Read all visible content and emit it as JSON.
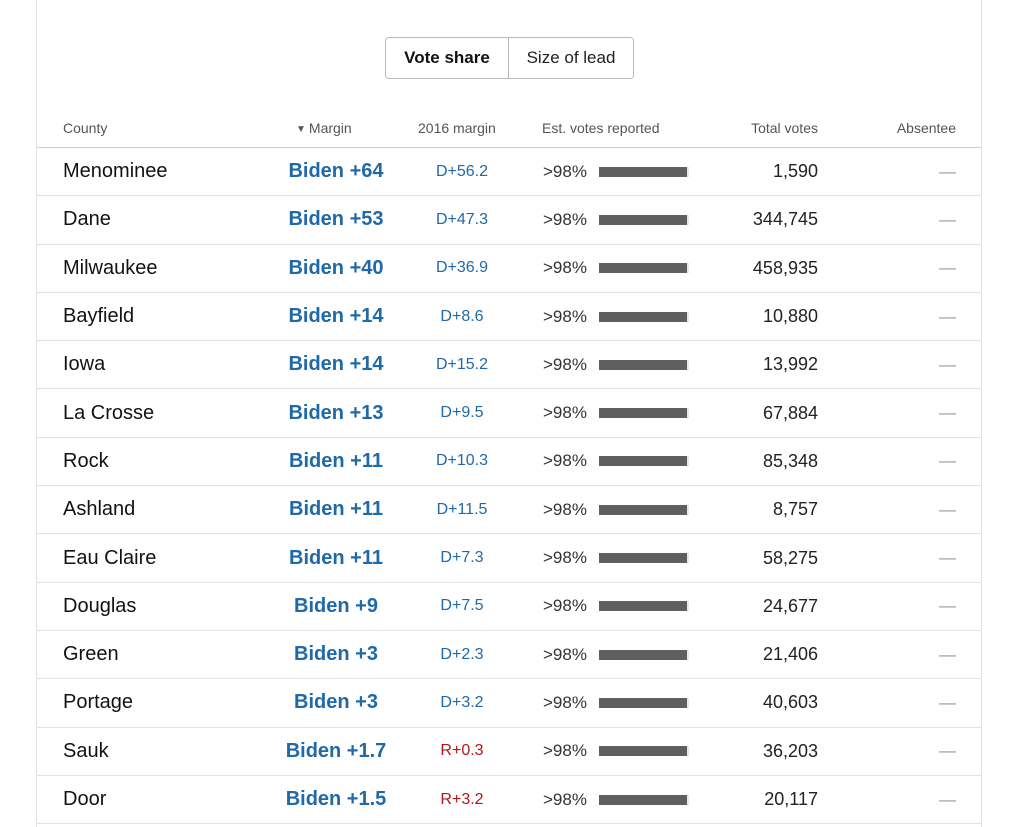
{
  "toggle": {
    "vote_share_label": "Vote share",
    "size_of_lead_label": "Size of lead",
    "selected": "Vote share"
  },
  "headers": {
    "county": "County",
    "sort_icon": "▼",
    "margin": "Margin",
    "margin_2016": "2016 margin",
    "est_votes": "Est. votes reported",
    "total_votes": "Total votes",
    "absentee": "Absentee"
  },
  "colors": {
    "dem_blue": "#2069a8",
    "rep_red": "#b5141b",
    "reported_bar": "#5f5f5f"
  },
  "rows": [
    {
      "county": "Menominee",
      "margin": "Biden +64",
      "margin_2016": "D+56.2",
      "party_2016": "dem",
      "est_reported": ">98%",
      "reported_fraction": 0.98,
      "total_votes": "1,590",
      "absentee": "—"
    },
    {
      "county": "Dane",
      "margin": "Biden +53",
      "margin_2016": "D+47.3",
      "party_2016": "dem",
      "est_reported": ">98%",
      "reported_fraction": 0.98,
      "total_votes": "344,745",
      "absentee": "—"
    },
    {
      "county": "Milwaukee",
      "margin": "Biden +40",
      "margin_2016": "D+36.9",
      "party_2016": "dem",
      "est_reported": ">98%",
      "reported_fraction": 0.98,
      "total_votes": "458,935",
      "absentee": "—"
    },
    {
      "county": "Bayfield",
      "margin": "Biden +14",
      "margin_2016": "D+8.6",
      "party_2016": "dem",
      "est_reported": ">98%",
      "reported_fraction": 0.98,
      "total_votes": "10,880",
      "absentee": "—"
    },
    {
      "county": "Iowa",
      "margin": "Biden +14",
      "margin_2016": "D+15.2",
      "party_2016": "dem",
      "est_reported": ">98%",
      "reported_fraction": 0.98,
      "total_votes": "13,992",
      "absentee": "—"
    },
    {
      "county": "La Crosse",
      "margin": "Biden +13",
      "margin_2016": "D+9.5",
      "party_2016": "dem",
      "est_reported": ">98%",
      "reported_fraction": 0.98,
      "total_votes": "67,884",
      "absentee": "—"
    },
    {
      "county": "Rock",
      "margin": "Biden +11",
      "margin_2016": "D+10.3",
      "party_2016": "dem",
      "est_reported": ">98%",
      "reported_fraction": 0.98,
      "total_votes": "85,348",
      "absentee": "—"
    },
    {
      "county": "Ashland",
      "margin": "Biden +11",
      "margin_2016": "D+11.5",
      "party_2016": "dem",
      "est_reported": ">98%",
      "reported_fraction": 0.98,
      "total_votes": "8,757",
      "absentee": "—"
    },
    {
      "county": "Eau Claire",
      "margin": "Biden +11",
      "margin_2016": "D+7.3",
      "party_2016": "dem",
      "est_reported": ">98%",
      "reported_fraction": 0.98,
      "total_votes": "58,275",
      "absentee": "—"
    },
    {
      "county": "Douglas",
      "margin": "Biden +9",
      "margin_2016": "D+7.5",
      "party_2016": "dem",
      "est_reported": ">98%",
      "reported_fraction": 0.98,
      "total_votes": "24,677",
      "absentee": "—"
    },
    {
      "county": "Green",
      "margin": "Biden +3",
      "margin_2016": "D+2.3",
      "party_2016": "dem",
      "est_reported": ">98%",
      "reported_fraction": 0.98,
      "total_votes": "21,406",
      "absentee": "—"
    },
    {
      "county": "Portage",
      "margin": "Biden +3",
      "margin_2016": "D+3.2",
      "party_2016": "dem",
      "est_reported": ">98%",
      "reported_fraction": 0.98,
      "total_votes": "40,603",
      "absentee": "—"
    },
    {
      "county": "Sauk",
      "margin": "Biden +1.7",
      "margin_2016": "R+0.3",
      "party_2016": "rep",
      "est_reported": ">98%",
      "reported_fraction": 0.98,
      "total_votes": "36,203",
      "absentee": "—"
    },
    {
      "county": "Door",
      "margin": "Biden +1.5",
      "margin_2016": "R+3.2",
      "party_2016": "rep",
      "est_reported": ">98%",
      "reported_fraction": 0.98,
      "total_votes": "20,117",
      "absentee": "—"
    }
  ]
}
